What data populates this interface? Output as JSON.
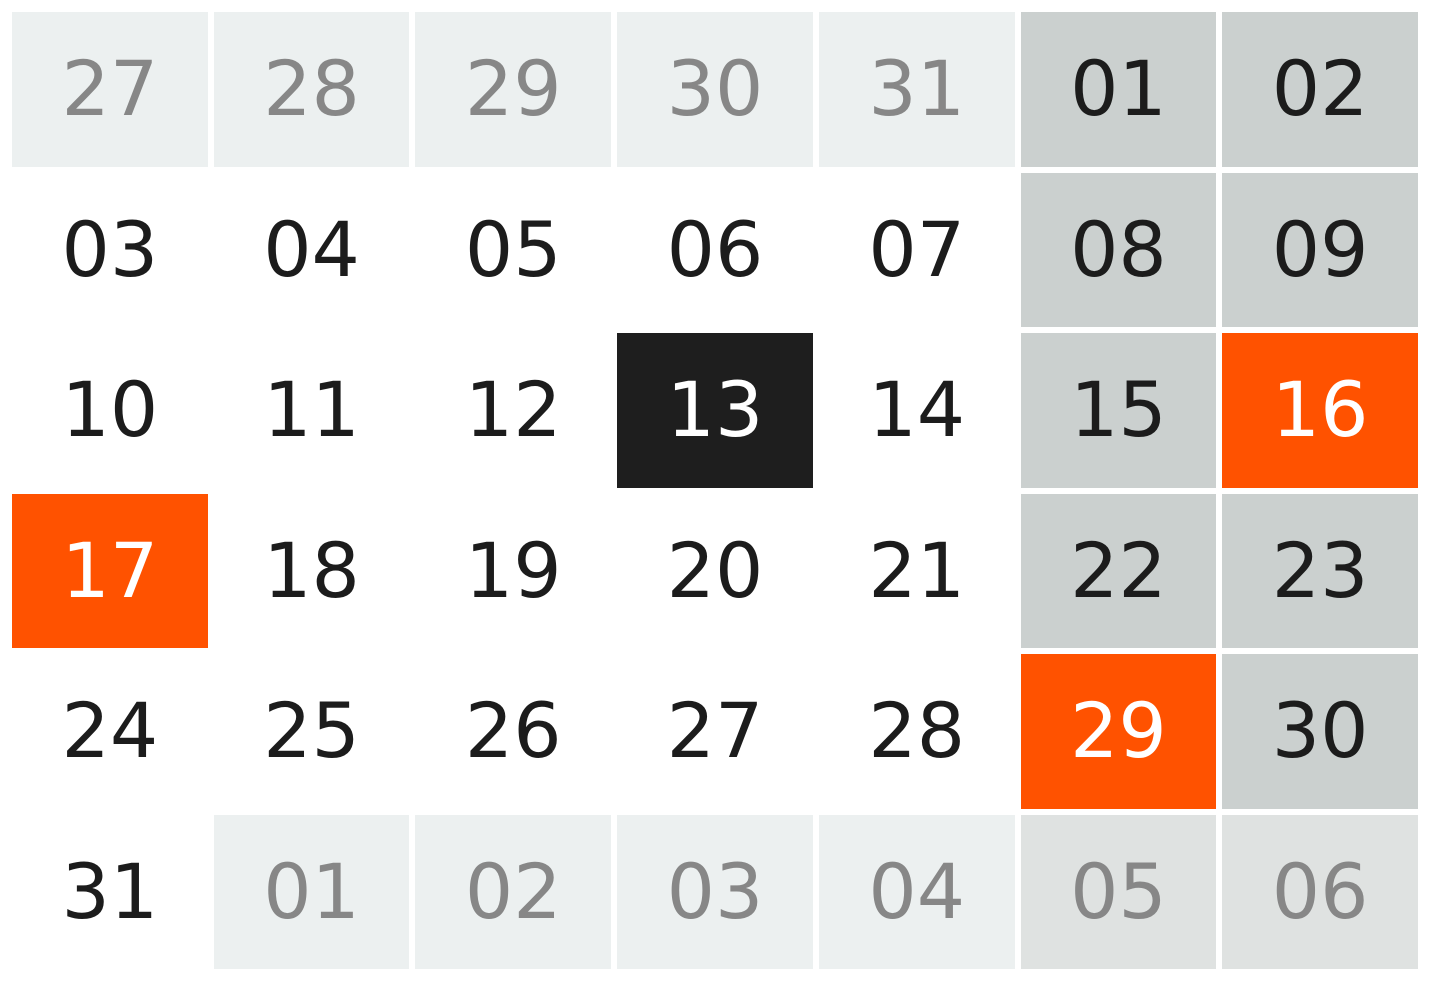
{
  "colors": {
    "outside_bg": "#ecf0f0",
    "outside_text": "#878787",
    "weekend_bg": "#cbd0cf",
    "today_bg": "#1e1e1e",
    "highlight_bg": "#ff5200",
    "text": "#1c1c1c"
  },
  "weeks": [
    {
      "days": [
        {
          "label": "27",
          "outside": true,
          "weekend": false,
          "today": false,
          "highlight": false
        },
        {
          "label": "28",
          "outside": true,
          "weekend": false,
          "today": false,
          "highlight": false
        },
        {
          "label": "29",
          "outside": true,
          "weekend": false,
          "today": false,
          "highlight": false
        },
        {
          "label": "30",
          "outside": true,
          "weekend": false,
          "today": false,
          "highlight": false
        },
        {
          "label": "31",
          "outside": true,
          "weekend": false,
          "today": false,
          "highlight": false
        },
        {
          "label": "01",
          "outside": false,
          "weekend": true,
          "today": false,
          "highlight": false
        },
        {
          "label": "02",
          "outside": false,
          "weekend": true,
          "today": false,
          "highlight": false
        }
      ]
    },
    {
      "days": [
        {
          "label": "03",
          "outside": false,
          "weekend": false,
          "today": false,
          "highlight": false
        },
        {
          "label": "04",
          "outside": false,
          "weekend": false,
          "today": false,
          "highlight": false
        },
        {
          "label": "05",
          "outside": false,
          "weekend": false,
          "today": false,
          "highlight": false
        },
        {
          "label": "06",
          "outside": false,
          "weekend": false,
          "today": false,
          "highlight": false
        },
        {
          "label": "07",
          "outside": false,
          "weekend": false,
          "today": false,
          "highlight": false
        },
        {
          "label": "08",
          "outside": false,
          "weekend": true,
          "today": false,
          "highlight": false
        },
        {
          "label": "09",
          "outside": false,
          "weekend": true,
          "today": false,
          "highlight": false
        }
      ]
    },
    {
      "days": [
        {
          "label": "10",
          "outside": false,
          "weekend": false,
          "today": false,
          "highlight": false
        },
        {
          "label": "11",
          "outside": false,
          "weekend": false,
          "today": false,
          "highlight": false
        },
        {
          "label": "12",
          "outside": false,
          "weekend": false,
          "today": false,
          "highlight": false
        },
        {
          "label": "13",
          "outside": false,
          "weekend": false,
          "today": true,
          "highlight": false
        },
        {
          "label": "14",
          "outside": false,
          "weekend": false,
          "today": false,
          "highlight": false
        },
        {
          "label": "15",
          "outside": false,
          "weekend": true,
          "today": false,
          "highlight": false
        },
        {
          "label": "16",
          "outside": false,
          "weekend": true,
          "today": false,
          "highlight": true
        }
      ]
    },
    {
      "days": [
        {
          "label": "17",
          "outside": false,
          "weekend": false,
          "today": false,
          "highlight": true
        },
        {
          "label": "18",
          "outside": false,
          "weekend": false,
          "today": false,
          "highlight": false
        },
        {
          "label": "19",
          "outside": false,
          "weekend": false,
          "today": false,
          "highlight": false
        },
        {
          "label": "20",
          "outside": false,
          "weekend": false,
          "today": false,
          "highlight": false
        },
        {
          "label": "21",
          "outside": false,
          "weekend": false,
          "today": false,
          "highlight": false
        },
        {
          "label": "22",
          "outside": false,
          "weekend": true,
          "today": false,
          "highlight": false
        },
        {
          "label": "23",
          "outside": false,
          "weekend": true,
          "today": false,
          "highlight": false
        }
      ]
    },
    {
      "days": [
        {
          "label": "24",
          "outside": false,
          "weekend": false,
          "today": false,
          "highlight": false
        },
        {
          "label": "25",
          "outside": false,
          "weekend": false,
          "today": false,
          "highlight": false
        },
        {
          "label": "26",
          "outside": false,
          "weekend": false,
          "today": false,
          "highlight": false
        },
        {
          "label": "27",
          "outside": false,
          "weekend": false,
          "today": false,
          "highlight": false
        },
        {
          "label": "28",
          "outside": false,
          "weekend": false,
          "today": false,
          "highlight": false
        },
        {
          "label": "29",
          "outside": false,
          "weekend": true,
          "today": false,
          "highlight": true
        },
        {
          "label": "30",
          "outside": false,
          "weekend": true,
          "today": false,
          "highlight": false
        }
      ]
    },
    {
      "days": [
        {
          "label": "31",
          "outside": false,
          "weekend": false,
          "today": false,
          "highlight": false
        },
        {
          "label": "01",
          "outside": true,
          "weekend": false,
          "today": false,
          "highlight": false
        },
        {
          "label": "02",
          "outside": true,
          "weekend": false,
          "today": false,
          "highlight": false
        },
        {
          "label": "03",
          "outside": true,
          "weekend": false,
          "today": false,
          "highlight": false
        },
        {
          "label": "04",
          "outside": true,
          "weekend": false,
          "today": false,
          "highlight": false
        },
        {
          "label": "05",
          "outside": true,
          "weekend": true,
          "today": false,
          "highlight": false
        },
        {
          "label": "06",
          "outside": true,
          "weekend": true,
          "today": false,
          "highlight": false
        }
      ]
    }
  ]
}
